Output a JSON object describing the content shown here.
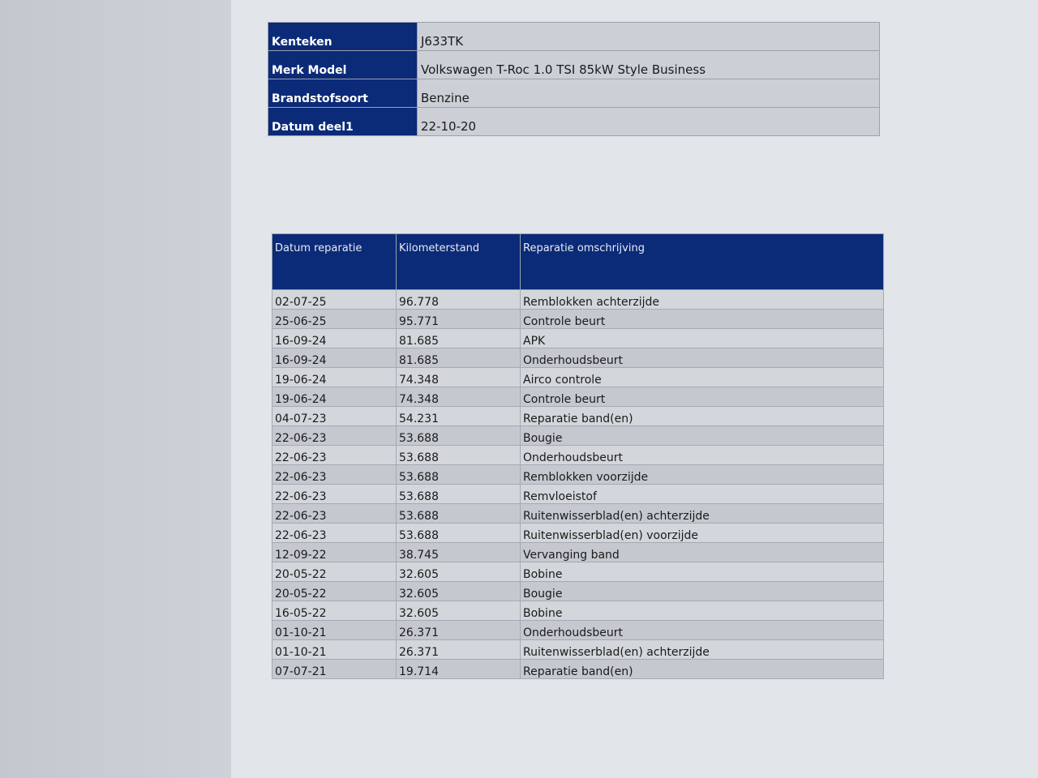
{
  "vehicle": [
    {
      "label": "Kenteken",
      "value": "J633TK"
    },
    {
      "label": "Merk Model",
      "value": "Volkswagen T-Roc 1.0 TSI 85kW Style Business"
    },
    {
      "label": "Brandstofsoort",
      "value": "Benzine"
    },
    {
      "label": "Datum deel1",
      "value": "22-10-20"
    }
  ],
  "history": {
    "headers": [
      "Datum reparatie",
      "Kilometerstand",
      "Reparatie omschrijving"
    ],
    "rows": [
      [
        "02-07-25",
        "96.778",
        "Remblokken achterzijde"
      ],
      [
        "25-06-25",
        "95.771",
        "Controle beurt"
      ],
      [
        "16-09-24",
        "81.685",
        "APK"
      ],
      [
        "16-09-24",
        "81.685",
        "Onderhoudsbeurt"
      ],
      [
        "19-06-24",
        "74.348",
        "Airco controle"
      ],
      [
        "19-06-24",
        "74.348",
        "Controle beurt"
      ],
      [
        "04-07-23",
        "54.231",
        "Reparatie band(en)"
      ],
      [
        "22-06-23",
        "53.688",
        "Bougie"
      ],
      [
        "22-06-23",
        "53.688",
        "Onderhoudsbeurt"
      ],
      [
        "22-06-23",
        "53.688",
        "Remblokken voorzijde"
      ],
      [
        "22-06-23",
        "53.688",
        "Remvloeistof"
      ],
      [
        "22-06-23",
        "53.688",
        "Ruitenwisserblad(en) achterzijde"
      ],
      [
        "22-06-23",
        "53.688",
        "Ruitenwisserblad(en) voorzijde"
      ],
      [
        "12-09-22",
        "38.745",
        "Vervanging band"
      ],
      [
        "20-05-22",
        "32.605",
        "Bobine"
      ],
      [
        "20-05-22",
        "32.605",
        "Bougie"
      ],
      [
        "16-05-22",
        "32.605",
        "Bobine"
      ],
      [
        "01-10-21",
        "26.371",
        "Onderhoudsbeurt"
      ],
      [
        "01-10-21",
        "26.371",
        "Ruitenwisserblad(en) achterzijde"
      ],
      [
        "07-07-21",
        "19.714",
        "Reparatie band(en)"
      ]
    ]
  },
  "colors": {
    "header_bg": "#0b2a78",
    "row_light": "#d3d7dc",
    "row_dark": "#c5c9cf"
  }
}
